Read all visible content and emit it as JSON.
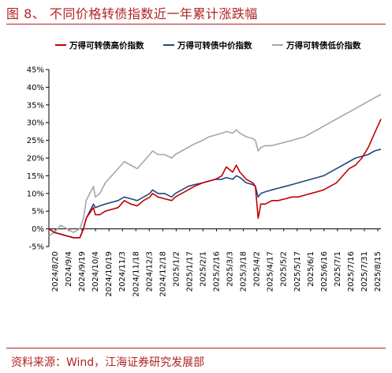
{
  "figure": {
    "title": "图 8、 不同价格转债指数近一年累计涨跌幅",
    "source": "资料来源：Wind，江海证券研究发展部"
  },
  "chart_data": {
    "type": "line",
    "title": "",
    "xlabel": "",
    "ylabel": "",
    "ylim": [
      -5,
      45
    ],
    "y_tick_step": 5,
    "y_tick_format": "percent",
    "grid": false,
    "legend_position": "top",
    "x_tick_labels": [
      "2024/8/20",
      "2024/9/4",
      "2024/9/19",
      "2024/10/4",
      "2024/10/19",
      "2024/11/3",
      "2024/11/18",
      "2024/12/3",
      "2024/12/18",
      "2025/1/2",
      "2025/1/17",
      "2025/2/1",
      "2025/2/16",
      "2025/3/3",
      "2025/3/18",
      "2025/4/2",
      "2025/4/17",
      "2025/5/2",
      "2025/5/17",
      "2025/6/1",
      "2025/6/16",
      "2025/7/1",
      "2025/7/16",
      "2025/7/31",
      "2025/8/15"
    ],
    "x_start": "2024-08-20",
    "x_end": "2025-08-20",
    "series": [
      {
        "name": "万得可转债高价指数",
        "color": "#c00000",
        "points": [
          [
            "2024-08-20",
            0
          ],
          [
            "2024-08-26",
            -1
          ],
          [
            "2024-09-02",
            -1.5
          ],
          [
            "2024-09-09",
            -2
          ],
          [
            "2024-09-16",
            -2.5
          ],
          [
            "2024-09-23",
            -2.5
          ],
          [
            "2024-09-27",
            0
          ],
          [
            "2024-09-30",
            3
          ],
          [
            "2024-10-08",
            6
          ],
          [
            "2024-10-10",
            4
          ],
          [
            "2024-10-15",
            4
          ],
          [
            "2024-10-21",
            5
          ],
          [
            "2024-10-28",
            5.5
          ],
          [
            "2024-11-04",
            6
          ],
          [
            "2024-11-11",
            8
          ],
          [
            "2024-11-18",
            7
          ],
          [
            "2024-11-25",
            6.5
          ],
          [
            "2024-12-02",
            8
          ],
          [
            "2024-12-09",
            9
          ],
          [
            "2024-12-12",
            10
          ],
          [
            "2024-12-18",
            9
          ],
          [
            "2024-12-25",
            8.5
          ],
          [
            "2025-01-02",
            8
          ],
          [
            "2025-01-06",
            9
          ],
          [
            "2025-01-13",
            10
          ],
          [
            "2025-01-20",
            11
          ],
          [
            "2025-01-27",
            12
          ],
          [
            "2025-02-05",
            13
          ],
          [
            "2025-02-12",
            13.5
          ],
          [
            "2025-02-19",
            14
          ],
          [
            "2025-02-26",
            15
          ],
          [
            "2025-03-03",
            17.5
          ],
          [
            "2025-03-10",
            16
          ],
          [
            "2025-03-14",
            18
          ],
          [
            "2025-03-18",
            16
          ],
          [
            "2025-03-25",
            14
          ],
          [
            "2025-04-01",
            13
          ],
          [
            "2025-04-04",
            12
          ],
          [
            "2025-04-07",
            3
          ],
          [
            "2025-04-10",
            7
          ],
          [
            "2025-04-15",
            7
          ],
          [
            "2025-04-22",
            8
          ],
          [
            "2025-04-29",
            8
          ],
          [
            "2025-05-07",
            8.5
          ],
          [
            "2025-05-14",
            9
          ],
          [
            "2025-05-21",
            9
          ],
          [
            "2025-05-28",
            9.5
          ],
          [
            "2025-06-04",
            10
          ],
          [
            "2025-06-11",
            10.5
          ],
          [
            "2025-06-18",
            11
          ],
          [
            "2025-06-25",
            12
          ],
          [
            "2025-07-02",
            13
          ],
          [
            "2025-07-09",
            15
          ],
          [
            "2025-07-16",
            17
          ],
          [
            "2025-07-23",
            18
          ],
          [
            "2025-07-30",
            20
          ],
          [
            "2025-08-06",
            23
          ],
          [
            "2025-08-13",
            27
          ],
          [
            "2025-08-20",
            31
          ]
        ]
      },
      {
        "name": "万得可转债中价指数",
        "color": "#1f497d",
        "points": [
          [
            "2024-08-20",
            0
          ],
          [
            "2024-08-26",
            -1
          ],
          [
            "2024-09-02",
            -1.5
          ],
          [
            "2024-09-09",
            -2
          ],
          [
            "2024-09-16",
            -2.5
          ],
          [
            "2024-09-23",
            -2.5
          ],
          [
            "2024-09-27",
            0
          ],
          [
            "2024-09-30",
            3
          ],
          [
            "2024-10-08",
            7
          ],
          [
            "2024-10-10",
            6
          ],
          [
            "2024-10-15",
            6.5
          ],
          [
            "2024-10-21",
            7
          ],
          [
            "2024-10-28",
            7.5
          ],
          [
            "2024-11-04",
            8
          ],
          [
            "2024-11-11",
            9
          ],
          [
            "2024-11-18",
            8.5
          ],
          [
            "2024-11-25",
            8
          ],
          [
            "2024-12-02",
            9
          ],
          [
            "2024-12-09",
            10
          ],
          [
            "2024-12-12",
            11
          ],
          [
            "2024-12-18",
            10
          ],
          [
            "2024-12-25",
            10
          ],
          [
            "2025-01-02",
            9
          ],
          [
            "2025-01-06",
            10
          ],
          [
            "2025-01-13",
            11
          ],
          [
            "2025-01-20",
            12
          ],
          [
            "2025-01-27",
            12.5
          ],
          [
            "2025-02-05",
            13
          ],
          [
            "2025-02-12",
            13.5
          ],
          [
            "2025-02-19",
            14
          ],
          [
            "2025-02-26",
            14
          ],
          [
            "2025-03-03",
            14.5
          ],
          [
            "2025-03-10",
            14
          ],
          [
            "2025-03-14",
            15
          ],
          [
            "2025-03-18",
            14.5
          ],
          [
            "2025-03-25",
            13
          ],
          [
            "2025-04-01",
            12.5
          ],
          [
            "2025-04-04",
            12
          ],
          [
            "2025-04-07",
            9
          ],
          [
            "2025-04-10",
            10
          ],
          [
            "2025-04-15",
            10.5
          ],
          [
            "2025-04-22",
            11
          ],
          [
            "2025-04-29",
            11.5
          ],
          [
            "2025-05-07",
            12
          ],
          [
            "2025-05-14",
            12.5
          ],
          [
            "2025-05-21",
            13
          ],
          [
            "2025-05-28",
            13.5
          ],
          [
            "2025-06-04",
            14
          ],
          [
            "2025-06-11",
            14.5
          ],
          [
            "2025-06-18",
            15
          ],
          [
            "2025-06-25",
            16
          ],
          [
            "2025-07-02",
            17
          ],
          [
            "2025-07-09",
            18
          ],
          [
            "2025-07-16",
            19
          ],
          [
            "2025-07-23",
            20
          ],
          [
            "2025-07-30",
            20.5
          ],
          [
            "2025-08-06",
            21
          ],
          [
            "2025-08-13",
            22
          ],
          [
            "2025-08-20",
            22.5
          ]
        ]
      },
      {
        "name": "万得可转债低价指数",
        "color": "#a6a6a6",
        "points": [
          [
            "2024-08-20",
            -2
          ],
          [
            "2024-08-26",
            -1
          ],
          [
            "2024-09-02",
            1
          ],
          [
            "2024-09-09",
            0
          ],
          [
            "2024-09-16",
            -1
          ],
          [
            "2024-09-23",
            0
          ],
          [
            "2024-09-27",
            3
          ],
          [
            "2024-09-30",
            8
          ],
          [
            "2024-10-08",
            12
          ],
          [
            "2024-10-10",
            9
          ],
          [
            "2024-10-15",
            10
          ],
          [
            "2024-10-21",
            13
          ],
          [
            "2024-10-28",
            15
          ],
          [
            "2024-11-04",
            17
          ],
          [
            "2024-11-11",
            19
          ],
          [
            "2024-11-18",
            18
          ],
          [
            "2024-11-25",
            17
          ],
          [
            "2024-12-02",
            19
          ],
          [
            "2024-12-09",
            21
          ],
          [
            "2024-12-12",
            22
          ],
          [
            "2024-12-18",
            21
          ],
          [
            "2024-12-25",
            21
          ],
          [
            "2025-01-02",
            20
          ],
          [
            "2025-01-06",
            21
          ],
          [
            "2025-01-13",
            22
          ],
          [
            "2025-01-20",
            23
          ],
          [
            "2025-01-27",
            24
          ],
          [
            "2025-02-05",
            25
          ],
          [
            "2025-02-12",
            26
          ],
          [
            "2025-02-19",
            26.5
          ],
          [
            "2025-02-26",
            27
          ],
          [
            "2025-03-03",
            27.5
          ],
          [
            "2025-03-10",
            27
          ],
          [
            "2025-03-14",
            28
          ],
          [
            "2025-03-18",
            27
          ],
          [
            "2025-03-25",
            26
          ],
          [
            "2025-04-01",
            25.5
          ],
          [
            "2025-04-04",
            25
          ],
          [
            "2025-04-07",
            22
          ],
          [
            "2025-04-10",
            23
          ],
          [
            "2025-04-15",
            23.5
          ],
          [
            "2025-04-22",
            23.5
          ],
          [
            "2025-04-29",
            24
          ],
          [
            "2025-05-07",
            24.5
          ],
          [
            "2025-05-14",
            25
          ],
          [
            "2025-05-21",
            25.5
          ],
          [
            "2025-05-28",
            26
          ],
          [
            "2025-06-04",
            27
          ],
          [
            "2025-06-11",
            28
          ],
          [
            "2025-06-18",
            29
          ],
          [
            "2025-06-25",
            30
          ],
          [
            "2025-07-02",
            31
          ],
          [
            "2025-07-09",
            32
          ],
          [
            "2025-07-16",
            33
          ],
          [
            "2025-07-23",
            34
          ],
          [
            "2025-07-30",
            35
          ],
          [
            "2025-08-06",
            36
          ],
          [
            "2025-08-13",
            37
          ],
          [
            "2025-08-20",
            38
          ]
        ]
      }
    ]
  }
}
